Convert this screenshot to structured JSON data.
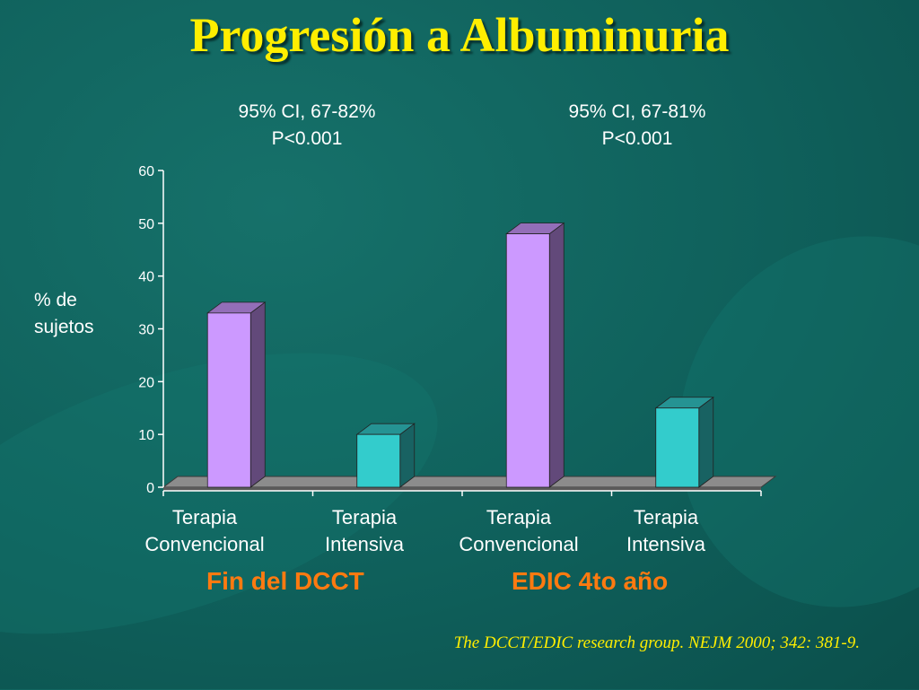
{
  "title": "Progresión a Albuminuria",
  "annotations": [
    {
      "line1": "95% CI, 67-82%",
      "line2": "P<0.001"
    },
    {
      "line1": "95% CI, 67-81%",
      "line2": "P<0.001"
    }
  ],
  "ylabel": {
    "line1": "% de",
    "line2": "sujetos"
  },
  "categories": [
    {
      "line1": "Terapia",
      "line2": "Convencional"
    },
    {
      "line1": "Terapia",
      "line2": "Intensiva"
    },
    {
      "line1": "Terapia",
      "line2": "Convencional"
    },
    {
      "line1": "Terapia",
      "line2": "Intensiva"
    }
  ],
  "groups": [
    "Fin del DCCT",
    "EDIC 4to año"
  ],
  "reference": "The DCCT/EDIC research group. NEJM 2000; 342: 381-9.",
  "colors": {
    "background": "#0f5f5a",
    "title": "#ffee00",
    "convencional": "#cc99ff",
    "intensiva": "#33cccc",
    "group_label": "#ff7a10"
  },
  "chart_data": {
    "type": "bar",
    "title": "Progresión a Albuminuria",
    "categories": [
      "Terapia Convencional",
      "Terapia Intensiva",
      "Terapia Convencional",
      "Terapia Intensiva"
    ],
    "values": [
      33,
      10,
      48,
      15
    ],
    "groups": [
      "Fin del DCCT",
      "Fin del DCCT",
      "EDIC 4to año",
      "EDIC 4to año"
    ],
    "ylabel": "% de sujetos",
    "ylim": [
      0,
      60
    ],
    "yticks": [
      "0",
      "10",
      "20",
      "30",
      "40",
      "50",
      "60"
    ],
    "grid": false,
    "style": "3d"
  }
}
